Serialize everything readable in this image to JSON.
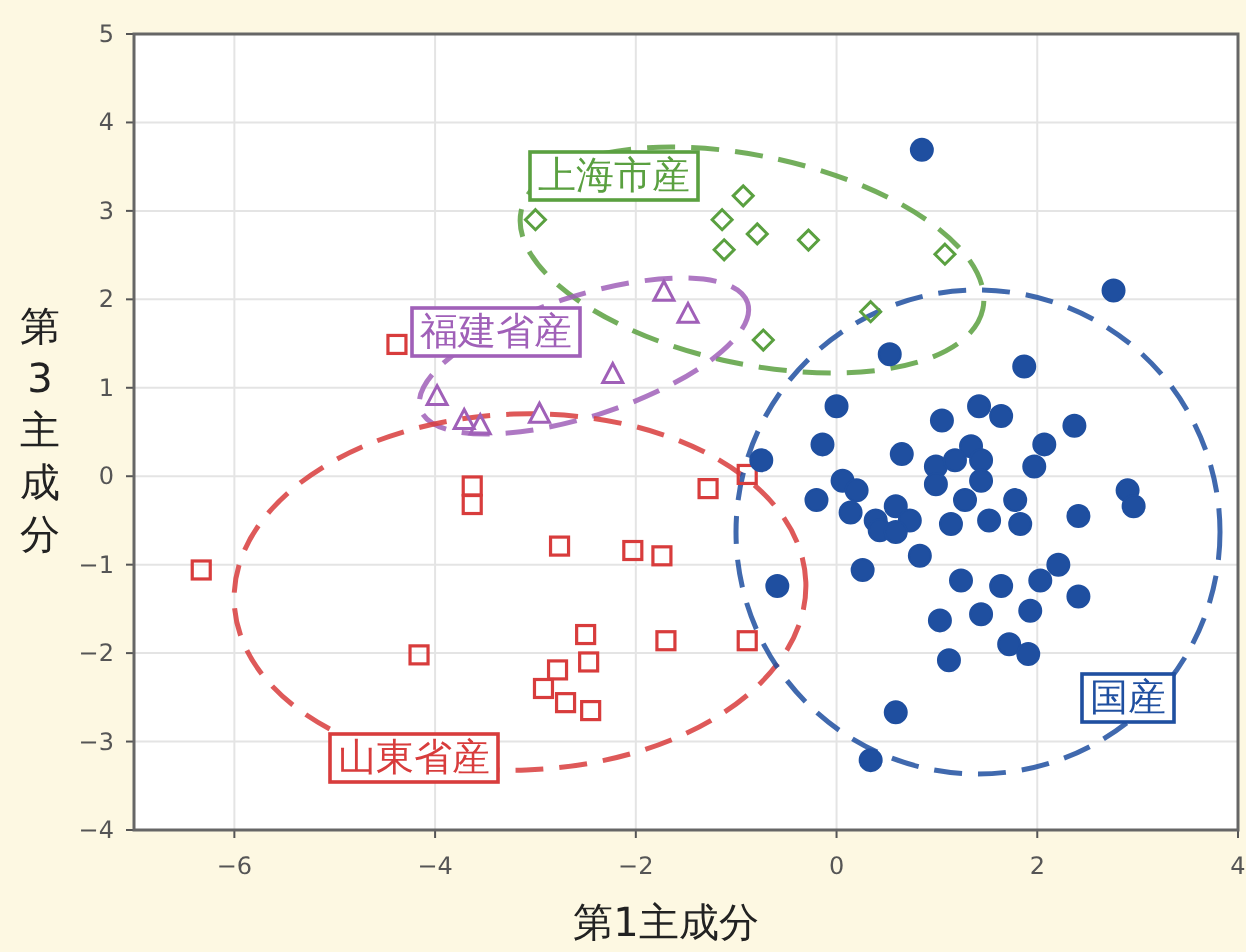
{
  "chart_data": {
    "type": "scatter",
    "xlabel": "第1主成分",
    "ylabel": "第3主成分",
    "xlim": [
      -7,
      4
    ],
    "ylim": [
      -4,
      5
    ],
    "xticks": [
      -6,
      -4,
      -2,
      0,
      2,
      4
    ],
    "yticks": [
      -4,
      -3,
      -2,
      -1,
      0,
      1,
      2,
      3,
      4,
      5
    ],
    "grid": true,
    "series": [
      {
        "name": "上海市産",
        "color": "#5aa040",
        "marker": "diamond",
        "x": [
          -3.0,
          -0.93,
          -1.14,
          -0.79,
          -1.12,
          -0.28,
          0.34,
          -0.73,
          1.08
        ],
        "values": [
          2.9,
          3.17,
          2.9,
          2.74,
          2.56,
          2.67,
          1.86,
          1.54,
          2.51
        ]
      },
      {
        "name": "福建省産",
        "color": "#a060b8",
        "marker": "triangle",
        "x": [
          -3.98,
          -3.71,
          -3.55,
          -2.96,
          -2.23,
          -1.72,
          -1.48
        ],
        "values": [
          0.9,
          0.63,
          0.57,
          0.7,
          1.15,
          2.08,
          1.83
        ]
      },
      {
        "name": "山東省産",
        "color": "#d83c3c",
        "marker": "square",
        "x": [
          -6.33,
          -4.16,
          -3.63,
          -3.63,
          -2.76,
          -2.03,
          -1.74,
          -1.28,
          -0.89,
          -2.5,
          -2.47,
          -2.78,
          -2.92,
          -2.7,
          -2.45,
          -1.7,
          -0.89,
          -4.38
        ],
        "values": [
          -1.06,
          -2.02,
          -0.11,
          -0.32,
          -0.79,
          -0.84,
          -0.9,
          -0.14,
          0.02,
          -1.79,
          -2.1,
          -2.19,
          -2.4,
          -2.56,
          -2.65,
          -1.86,
          -1.86,
          1.49
        ]
      },
      {
        "name": "国産",
        "color": "#1f4fa0",
        "marker": "circle",
        "x": [
          0.85,
          2.76,
          0.53,
          1.87,
          0.0,
          -0.14,
          -0.75,
          1.05,
          1.42,
          1.64,
          2.37,
          2.07,
          1.34,
          1.44,
          0.65,
          0.99,
          1.18,
          1.97,
          0.06,
          0.2,
          -0.2,
          0.99,
          1.44,
          2.9,
          2.96,
          2.41,
          1.78,
          1.28,
          0.59,
          0.39,
          0.73,
          1.52,
          1.83,
          1.14,
          0.14,
          0.43,
          0.59,
          0.83,
          0.26,
          1.24,
          1.64,
          2.03,
          2.21,
          2.41,
          1.03,
          1.44,
          1.93,
          1.72,
          1.91,
          1.12,
          -0.59,
          0.59,
          0.34
        ],
        "values": [
          3.69,
          2.1,
          1.38,
          1.24,
          0.79,
          0.36,
          0.18,
          0.63,
          0.79,
          0.68,
          0.57,
          0.36,
          0.34,
          0.18,
          0.25,
          0.11,
          0.18,
          0.11,
          -0.05,
          -0.16,
          -0.27,
          -0.09,
          -0.05,
          -0.16,
          -0.34,
          -0.45,
          -0.27,
          -0.27,
          -0.34,
          -0.5,
          -0.5,
          -0.5,
          -0.54,
          -0.54,
          -0.41,
          -0.61,
          -0.63,
          -0.9,
          -1.06,
          -1.18,
          -1.24,
          -1.18,
          -1.0,
          -1.36,
          -1.63,
          -1.56,
          -1.52,
          -1.9,
          -2.01,
          -2.08,
          -1.24,
          -2.67,
          -3.21
        ]
      }
    ]
  }
}
